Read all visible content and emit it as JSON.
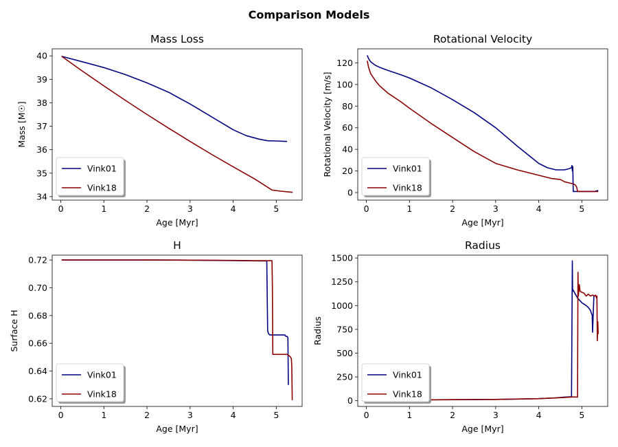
{
  "figure": {
    "suptitle": "Comparison Models"
  },
  "colors": {
    "Vink01": "#000080",
    "Vink18": "#8b0000"
  },
  "chart_data": [
    {
      "type": "line",
      "title": "Mass Loss",
      "xlabel": "Age [Myr]",
      "ylabel": "Mass [M☉]",
      "xlim": [
        -0.2,
        5.6
      ],
      "ylim": [
        33.85,
        40.3
      ],
      "xticks": [
        0,
        1,
        2,
        3,
        4,
        5
      ],
      "yticks": [
        34,
        35,
        36,
        37,
        38,
        39,
        40
      ],
      "legend": "lower-left",
      "series": [
        {
          "name": "Vink01",
          "x": [
            0.02,
            0.5,
            1,
            1.5,
            2,
            2.5,
            3,
            3.5,
            4,
            4.3,
            4.6,
            4.8,
            5.0,
            5.25
          ],
          "y": [
            39.98,
            39.75,
            39.5,
            39.2,
            38.85,
            38.45,
            37.95,
            37.4,
            36.85,
            36.6,
            36.45,
            36.38,
            36.37,
            36.35
          ]
        },
        {
          "name": "Vink18",
          "x": [
            0.02,
            0.5,
            1,
            1.5,
            2,
            2.5,
            3,
            3.5,
            4,
            4.5,
            4.9,
            5.1,
            5.38
          ],
          "y": [
            39.98,
            39.35,
            38.72,
            38.1,
            37.5,
            36.92,
            36.35,
            35.8,
            35.27,
            34.75,
            34.28,
            34.23,
            34.18
          ]
        }
      ]
    },
    {
      "type": "line",
      "title": "Rotational Velocity",
      "xlabel": "Age [Myr]",
      "ylabel": "Rotational Velocity [m/s]",
      "xlim": [
        -0.2,
        5.6
      ],
      "ylim": [
        -7,
        133
      ],
      "xticks": [
        0,
        1,
        2,
        3,
        4,
        5
      ],
      "yticks": [
        0,
        20,
        40,
        60,
        80,
        100,
        120
      ],
      "legend": "lower-left",
      "series": [
        {
          "name": "Vink01",
          "x": [
            0.02,
            0.05,
            0.1,
            0.2,
            0.3,
            0.5,
            0.8,
            1,
            1.5,
            2,
            2.5,
            3,
            3.5,
            4,
            4.2,
            4.4,
            4.6,
            4.7,
            4.76,
            4.77,
            4.78,
            4.79,
            4.8,
            4.82,
            5.0,
            5.1,
            5.2,
            5.25,
            5.3,
            5.38
          ],
          "y": [
            127,
            124,
            121,
            118,
            116,
            113,
            109,
            106,
            97,
            86,
            74,
            60,
            43,
            27,
            23,
            21,
            21,
            22,
            23,
            25,
            20,
            24,
            1,
            1,
            1,
            1,
            1,
            1,
            1,
            2
          ]
        },
        {
          "name": "Vink18",
          "x": [
            0.02,
            0.05,
            0.1,
            0.2,
            0.3,
            0.5,
            0.8,
            1,
            1.5,
            2,
            2.5,
            3,
            3.5,
            4,
            4.3,
            4.5,
            4.6,
            4.7,
            4.8,
            4.85,
            4.88,
            4.9,
            4.95,
            5.2,
            5.3,
            5.38
          ],
          "y": [
            122,
            116,
            110,
            104,
            99,
            92,
            84,
            78,
            64,
            51,
            38,
            27,
            21,
            16,
            13,
            12,
            10,
            9,
            8,
            7,
            5,
            1,
            1,
            1,
            1,
            1
          ]
        }
      ]
    },
    {
      "type": "line",
      "title": "H",
      "xlabel": "Age [Myr]",
      "ylabel": "Surface H",
      "xlim": [
        -0.2,
        5.6
      ],
      "ylim": [
        0.6145,
        0.7235
      ],
      "xticks": [
        0,
        1,
        2,
        3,
        4,
        5
      ],
      "yticks": [
        0.62,
        0.64,
        0.66,
        0.68,
        0.7,
        0.72
      ],
      "legend": "lower-left",
      "series": [
        {
          "name": "Vink01",
          "x": [
            0.02,
            1,
            2,
            3,
            4,
            4.5,
            4.78,
            4.8,
            4.82,
            4.85,
            4.9,
            5.0,
            5.1,
            5.2,
            5.22,
            5.25,
            5.27,
            5.28
          ],
          "y": [
            0.72,
            0.72,
            0.72,
            0.7199,
            0.7196,
            0.7194,
            0.7193,
            0.669,
            0.667,
            0.666,
            0.666,
            0.666,
            0.666,
            0.666,
            0.665,
            0.665,
            0.664,
            0.63
          ]
        },
        {
          "name": "Vink18",
          "x": [
            0.02,
            1,
            2,
            3,
            4,
            4.5,
            4.9,
            4.91,
            4.92,
            4.95,
            5.1,
            5.25,
            5.3,
            5.33,
            5.35,
            5.36,
            5.37
          ],
          "y": [
            0.72,
            0.72,
            0.72,
            0.7199,
            0.7197,
            0.7195,
            0.7195,
            0.7,
            0.652,
            0.652,
            0.652,
            0.652,
            0.651,
            0.65,
            0.649,
            0.644,
            0.619
          ]
        }
      ]
    },
    {
      "type": "line",
      "title": "Radius",
      "xlabel": "Age [Myr]",
      "ylabel": "Radius",
      "xlim": [
        -0.2,
        5.6
      ],
      "ylim": [
        -60,
        1530
      ],
      "xticks": [
        0,
        1,
        2,
        3,
        4,
        5
      ],
      "yticks": [
        0,
        250,
        500,
        750,
        1000,
        1250,
        1500
      ],
      "legend": "lower-left",
      "series": [
        {
          "name": "Vink01",
          "x": [
            0.02,
            1,
            2,
            3,
            3.5,
            4,
            4.4,
            4.6,
            4.76,
            4.78,
            4.785,
            4.79,
            4.8,
            4.85,
            4.9,
            5.0,
            5.1,
            5.15,
            5.2,
            5.22,
            5.24,
            5.25,
            5.26,
            5.28
          ],
          "y": [
            8,
            9,
            11,
            14,
            17,
            22,
            30,
            38,
            42,
            1470,
            1150,
            1170,
            1160,
            1120,
            1080,
            1030,
            1000,
            980,
            950,
            920,
            900,
            720,
            870,
            1100
          ]
        },
        {
          "name": "Vink18",
          "x": [
            0.02,
            1,
            2,
            3,
            4,
            4.5,
            4.8,
            4.9,
            4.91,
            4.92,
            4.94,
            4.96,
            5.0,
            5.05,
            5.1,
            5.15,
            5.2,
            5.25,
            5.3,
            5.32,
            5.34,
            5.35,
            5.36,
            5.37,
            5.38
          ],
          "y": [
            8,
            9,
            11,
            14,
            22,
            32,
            40,
            38,
            1350,
            1100,
            1220,
            1150,
            1140,
            1130,
            1100,
            1120,
            1100,
            1110,
            1100,
            1110,
            1080,
            1100,
            630,
            830,
            700
          ]
        }
      ]
    }
  ]
}
